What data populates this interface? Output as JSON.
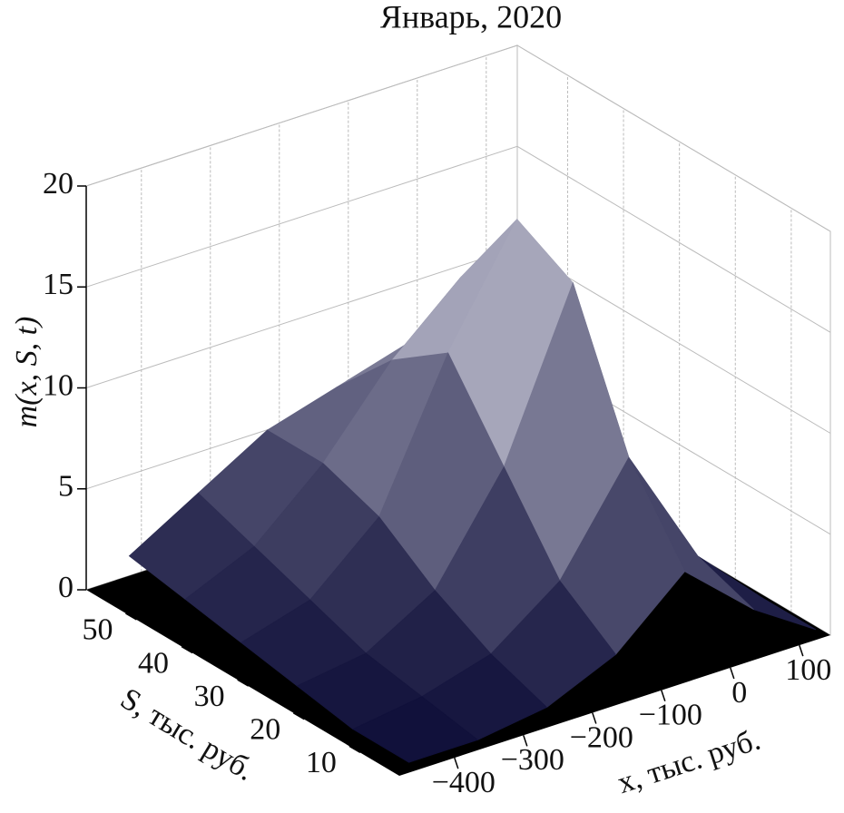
{
  "chart_data": {
    "type": "surface3d",
    "title": "Январь, 2020",
    "zlabel": "m(x, S, t)",
    "slabel": "S, тыс. руб.",
    "xlabel": "x, тыс. руб.",
    "x": [
      -450,
      -350,
      -250,
      -150,
      -50,
      50,
      140
    ],
    "s": [
      5,
      15,
      25,
      35,
      45,
      55
    ],
    "z": [
      [
        0,
        0,
        0.5,
        2,
        5,
        2,
        0
      ],
      [
        0,
        0.5,
        1.5,
        4,
        9,
        3,
        0
      ],
      [
        0.5,
        1,
        3,
        8,
        16,
        4,
        0
      ],
      [
        1,
        2,
        5,
        12,
        17.5,
        4,
        0
      ],
      [
        1.5,
        3,
        6,
        10,
        13,
        3,
        0
      ],
      [
        2,
        4,
        6,
        7,
        8,
        2,
        0
      ]
    ],
    "xlim": [
      -480,
      145
    ],
    "slim": [
      3,
      59
    ],
    "zlim": [
      0,
      20
    ],
    "xticks": [
      {
        "value": -400,
        "label": "−400"
      },
      {
        "value": -300,
        "label": "−300"
      },
      {
        "value": -200,
        "label": "−200"
      },
      {
        "value": -100,
        "label": "−100"
      },
      0,
      100
    ],
    "sticks": [
      10,
      20,
      30,
      40,
      50
    ],
    "zticks": [
      0,
      5,
      10,
      15,
      20
    ],
    "colors": {
      "low": "#10103a",
      "high": "#f0f0fa",
      "floor": "#000000"
    },
    "grid": true
  }
}
